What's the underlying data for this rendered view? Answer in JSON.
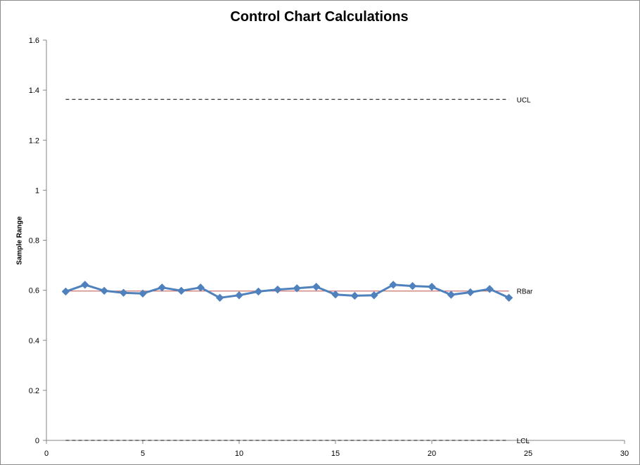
{
  "chart_data": {
    "type": "line",
    "title": "Control Chart Calculations",
    "xlabel": "",
    "ylabel": "Sample Range",
    "xlim": [
      0,
      30
    ],
    "ylim": [
      0,
      1.6
    ],
    "xticks": [
      0,
      5,
      10,
      15,
      20,
      25,
      30
    ],
    "yticks": [
      0,
      0.2,
      0.4,
      0.6,
      0.8,
      1,
      1.2,
      1.4,
      1.6
    ],
    "grid": false,
    "legend": "none",
    "series": [
      {
        "x": [
          1,
          2,
          3,
          4,
          5,
          6,
          7,
          8,
          9,
          10,
          11,
          12,
          13,
          14,
          15,
          16,
          17,
          18,
          19,
          20,
          21,
          22,
          23,
          24
        ],
        "values": [
          0.595,
          0.622,
          0.598,
          0.59,
          0.587,
          0.611,
          0.598,
          0.611,
          0.57,
          0.58,
          0.595,
          0.603,
          0.608,
          0.614,
          0.583,
          0.578,
          0.58,
          0.622,
          0.617,
          0.614,
          0.582,
          0.592,
          0.605,
          0.57
        ],
        "color": "#4f81bd",
        "marker": "diamond"
      }
    ],
    "reference_lines": [
      {
        "label": "UCL",
        "value": 1.363,
        "x_range": [
          1,
          24
        ],
        "style": "dashed",
        "color": "#000000"
      },
      {
        "label": "RBar",
        "value": 0.597,
        "x_range": [
          1,
          24
        ],
        "style": "solid",
        "color": "#c0504d"
      },
      {
        "label": "LCL",
        "value": 0,
        "x_range": [
          1,
          24
        ],
        "style": "dashed",
        "color": "#000000"
      }
    ]
  }
}
